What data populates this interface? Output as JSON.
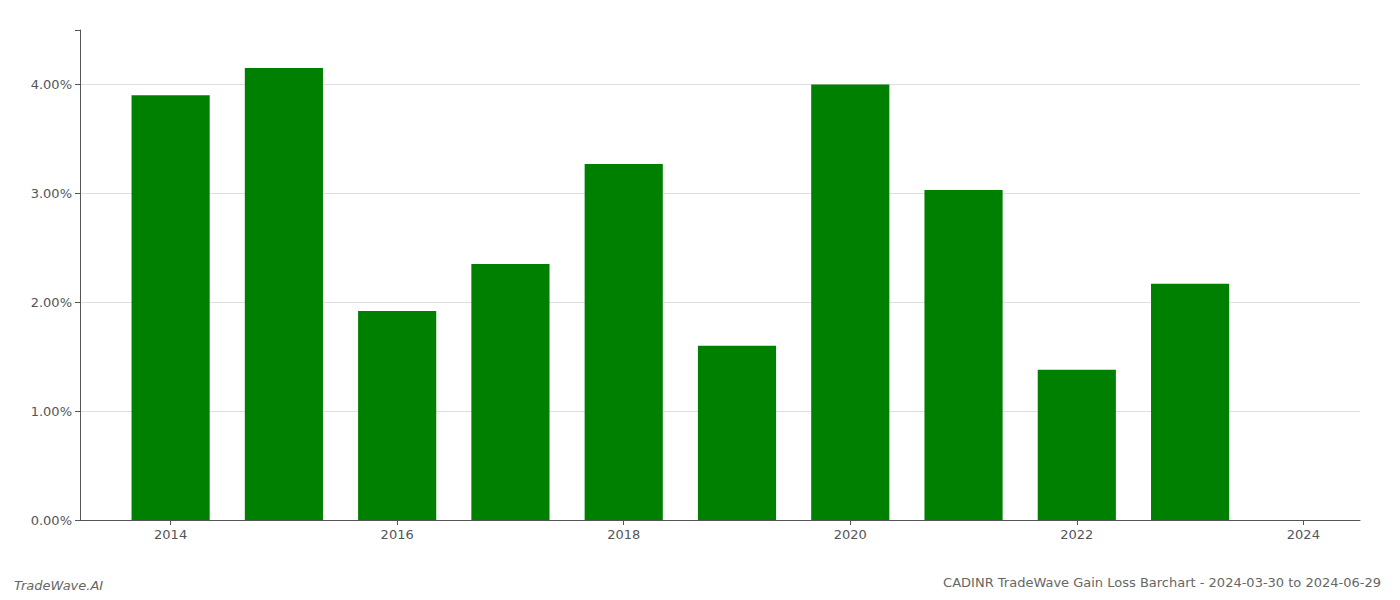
{
  "chart_data": {
    "type": "bar",
    "title": "CADINR TradeWave Gain Loss Barchart - 2024-03-30 to 2024-06-29",
    "annotations": [
      "TradeWave.AI"
    ],
    "x": [
      2014,
      2015,
      2016,
      2017,
      2018,
      2019,
      2020,
      2021,
      2022,
      2023
    ],
    "values": [
      0.039,
      0.0415,
      0.0192,
      0.0235,
      0.0327,
      0.016,
      0.04,
      0.0303,
      0.0138,
      0.0217
    ],
    "color": "#008000",
    "xlim": [
      2013.2,
      2024.5
    ],
    "xticks": [
      2014,
      2016,
      2018,
      2020,
      2022,
      2024
    ],
    "ylim": [
      0,
      0.045
    ],
    "yticks": [
      {
        "value": 0.0,
        "label": "0.00%"
      },
      {
        "value": 0.01,
        "label": "1.00%"
      },
      {
        "value": 0.02,
        "label": "2.00%"
      },
      {
        "value": 0.03,
        "label": "3.00%"
      },
      {
        "value": 0.04,
        "label": "4.00%"
      }
    ],
    "grid": true
  }
}
